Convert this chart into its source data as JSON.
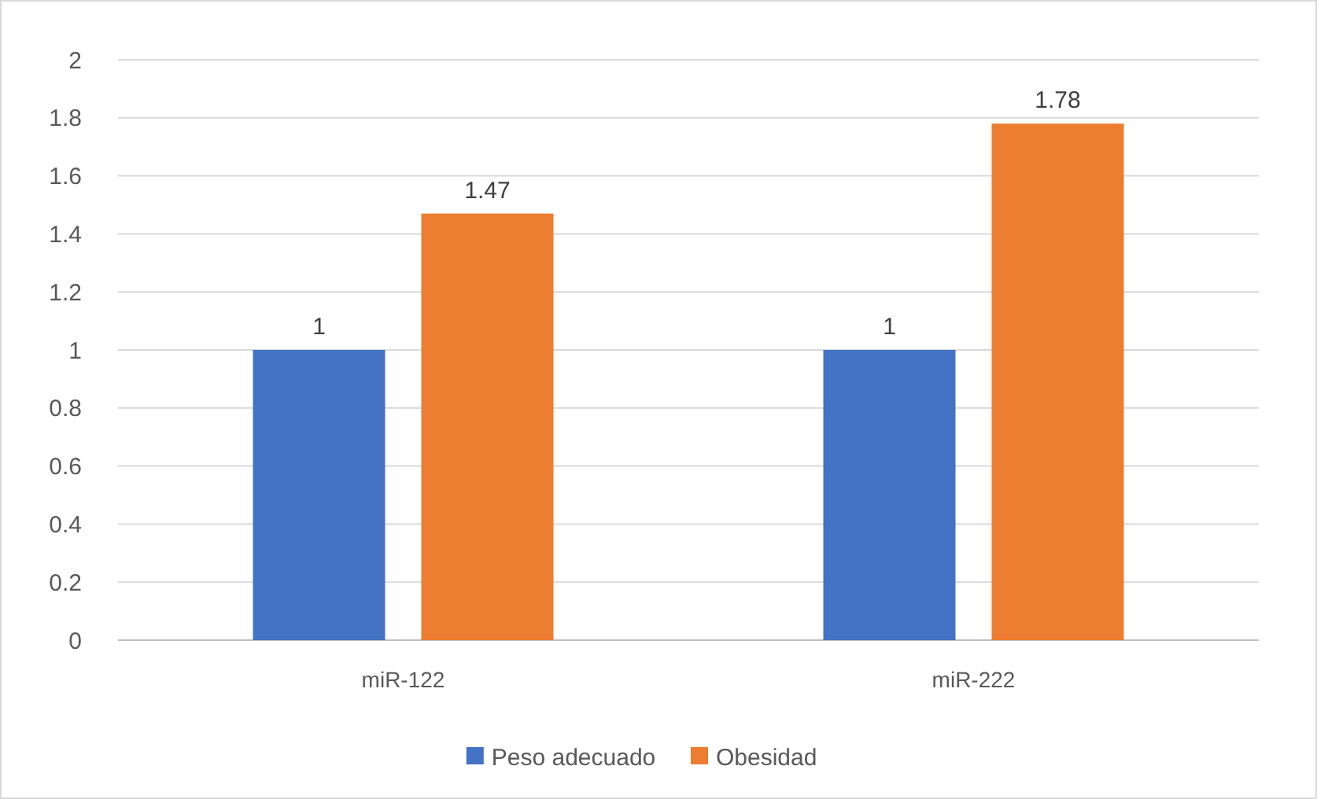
{
  "chart_data": {
    "type": "bar",
    "categories": [
      "miR-122",
      "miR-222"
    ],
    "series": [
      {
        "name": "Peso adecuado",
        "color": "#4472c4",
        "values": [
          1,
          1
        ]
      },
      {
        "name": "Obesidad",
        "color": "#ed7d31",
        "values": [
          1.47,
          1.78
        ]
      }
    ],
    "ylim": [
      0,
      2
    ],
    "yticks": [
      0,
      {
        "value": 0.2,
        "label": "0.2"
      },
      {
        "value": 0.4,
        "label": "0.4"
      },
      {
        "value": 0.6,
        "label": "0.6"
      },
      {
        "value": 0.8,
        "label": "0.8"
      },
      1,
      {
        "value": 1.2,
        "label": "1.2"
      },
      {
        "value": 1.4,
        "label": "1.4"
      },
      {
        "value": 1.6,
        "label": "1.6"
      },
      {
        "value": 1.8,
        "label": "1.8"
      },
      2
    ],
    "grid": "y",
    "legend": "bottom",
    "data_labels": true
  }
}
